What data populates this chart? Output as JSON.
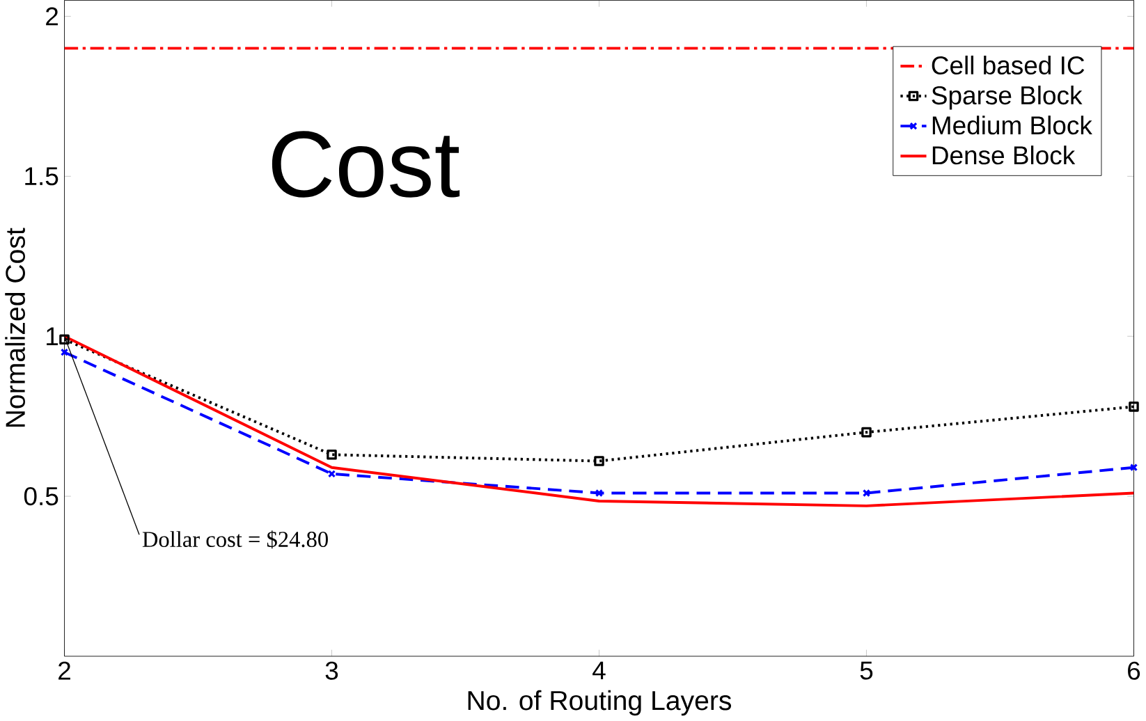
{
  "chart_data": {
    "type": "line",
    "xlabel": "No. of Routing Layers",
    "ylabel": "Normalized Cost",
    "x": [
      2,
      3,
      4,
      5,
      6
    ],
    "series": [
      {
        "name": "Cell based IC",
        "color": "#ff0000",
        "values": [
          1.9,
          1.9,
          1.9,
          1.9,
          1.9
        ],
        "line_style": "dashdot",
        "marker": "none"
      },
      {
        "name": "Sparse Block",
        "color": "#000000",
        "values": [
          0.99,
          0.63,
          0.61,
          0.7,
          0.78
        ],
        "line_style": "dotted",
        "marker": "square"
      },
      {
        "name": "Medium Block",
        "color": "#0000ff",
        "values": [
          0.95,
          0.57,
          0.51,
          0.51,
          0.59
        ],
        "line_style": "dashed",
        "marker": "cross"
      },
      {
        "name": "Dense Block",
        "color": "#ff0000",
        "values": [
          1.0,
          0.59,
          0.485,
          0.47,
          0.51
        ],
        "line_style": "solid",
        "marker": "none"
      }
    ],
    "xlim": [
      2,
      6
    ],
    "ylim": [
      0,
      2.05
    ],
    "xticks": [
      2,
      3,
      4,
      5,
      6
    ],
    "yticks": [
      0.5,
      1,
      1.5,
      2
    ],
    "legend": "top right",
    "grid": false,
    "annotations": [
      "Cost",
      {
        "text": "Dollar cost = $24.80",
        "x": 2,
        "y": 1
      }
    ]
  }
}
